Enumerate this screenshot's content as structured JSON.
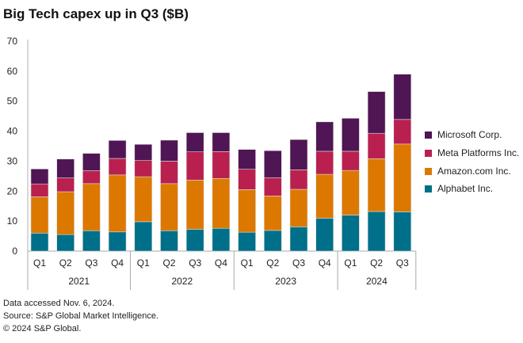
{
  "chart_data": {
    "type": "bar",
    "stacked": true,
    "title": "Big Tech capex up in Q3 ($B)",
    "xlabel": "",
    "ylabel": "",
    "ylim": [
      0,
      70
    ],
    "yticks": [
      0,
      10,
      20,
      30,
      40,
      50,
      60,
      70
    ],
    "grid": false,
    "legend_position": "right",
    "years": [
      "2021",
      "2022",
      "2023",
      "2024"
    ],
    "categories": [
      "Q1",
      "Q2",
      "Q3",
      "Q4",
      "Q1",
      "Q2",
      "Q3",
      "Q4",
      "Q1",
      "Q2",
      "Q3",
      "Q4",
      "Q1",
      "Q2",
      "Q3"
    ],
    "series": [
      {
        "name": "Alphabet Inc.",
        "color": "#006f89",
        "values": [
          6.0,
          5.5,
          6.8,
          6.4,
          9.8,
          6.8,
          7.3,
          7.6,
          6.3,
          6.9,
          8.1,
          11.0,
          12.0,
          13.2,
          13.1
        ]
      },
      {
        "name": "Amazon.com Inc.",
        "color": "#dc7800",
        "values": [
          12.1,
          14.3,
          15.7,
          19.0,
          15.0,
          15.7,
          16.4,
          16.6,
          14.2,
          11.5,
          12.5,
          14.6,
          14.9,
          17.6,
          22.6
        ]
      },
      {
        "name": "Meta Platforms Inc.",
        "color": "#b9204f",
        "values": [
          4.3,
          4.6,
          4.3,
          5.5,
          5.4,
          7.5,
          9.4,
          9.0,
          6.8,
          6.1,
          6.5,
          7.7,
          6.4,
          8.5,
          8.2
        ]
      },
      {
        "name": "Microsoft Corp.",
        "color": "#4f1554",
        "values": [
          5.0,
          6.3,
          5.8,
          6.0,
          5.4,
          7.0,
          6.4,
          6.3,
          6.6,
          9.0,
          10.1,
          9.8,
          11.0,
          13.9,
          15.1
        ]
      }
    ]
  },
  "footer": {
    "line1": "Data accessed Nov. 6, 2024.",
    "line2": "Source: S&P Global Market Intelligence.",
    "line3": "© 2024 S&P Global."
  }
}
